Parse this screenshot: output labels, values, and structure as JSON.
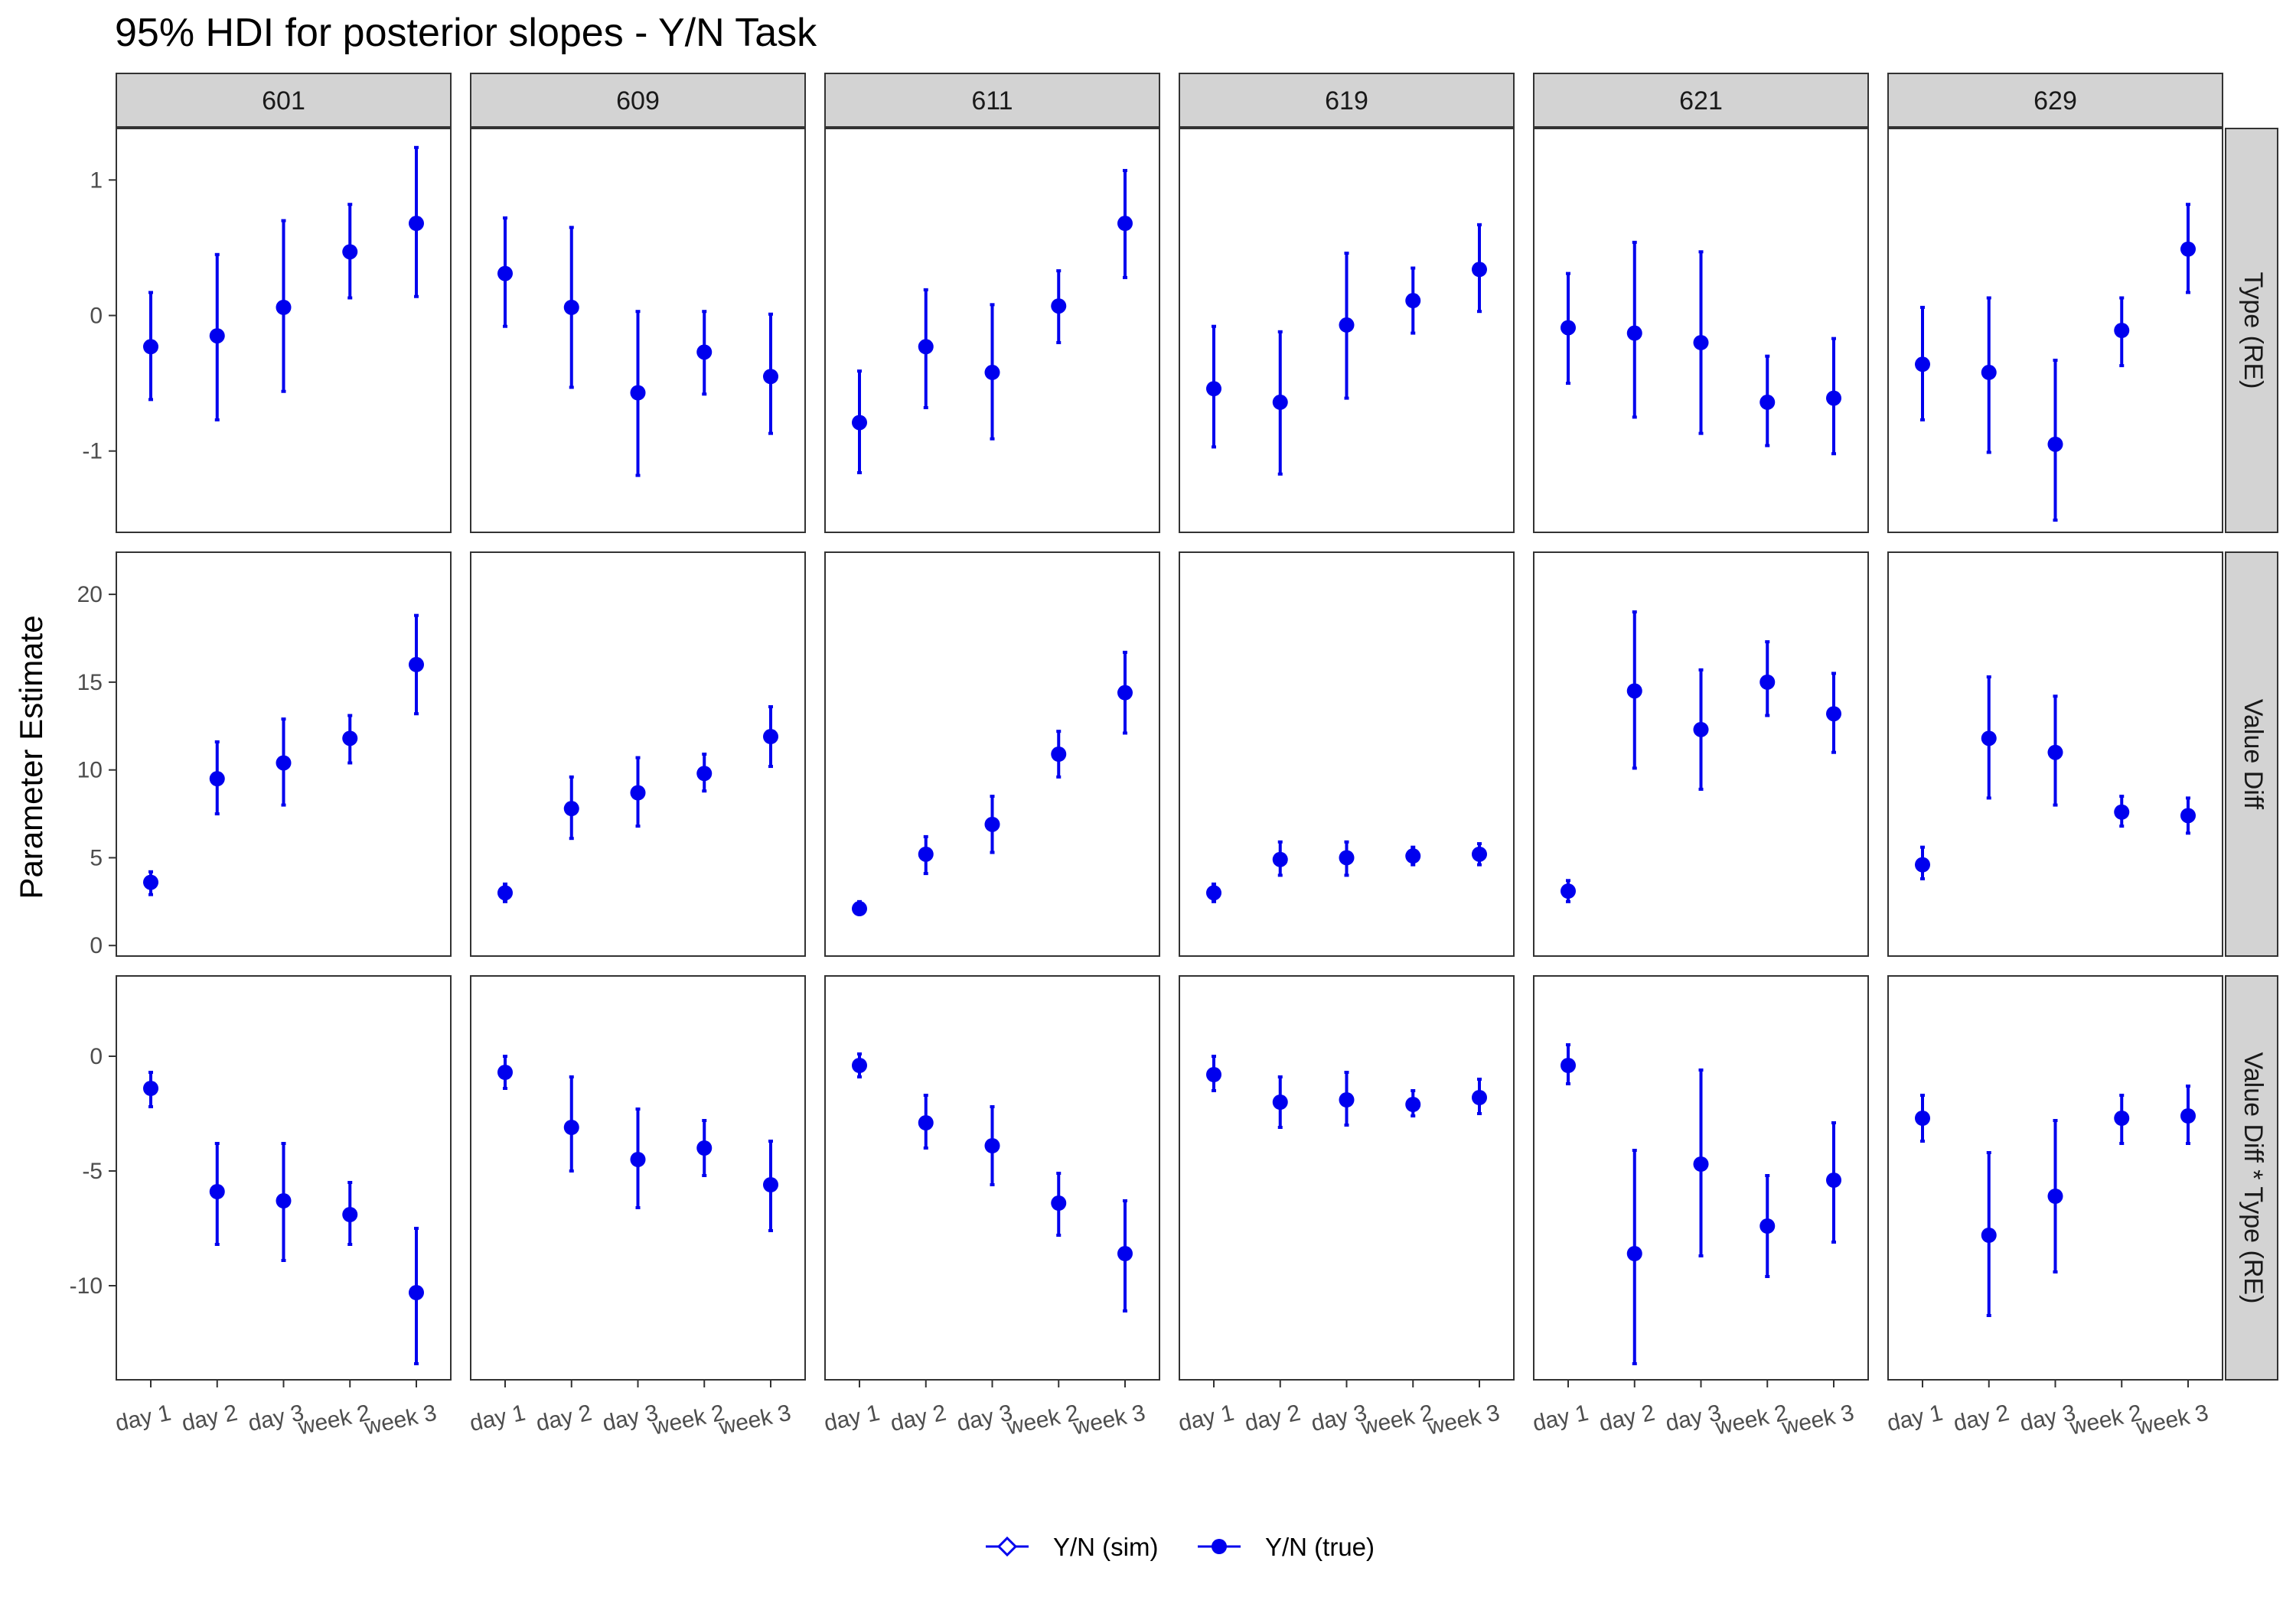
{
  "chart_data": {
    "type": "scatter",
    "title": "95% HDI for posterior slopes - Y/N Task",
    "ylabel": "Parameter Estimate",
    "xlabel": "",
    "columns": [
      "601",
      "609",
      "611",
      "619",
      "621",
      "629"
    ],
    "categories": [
      "day 1",
      "day 2",
      "day 3",
      "week 2",
      "week 3"
    ],
    "legend": {
      "position": "bottom",
      "entries": [
        {
          "label": "Y/N (sim)",
          "marker": "open-diamond"
        },
        {
          "label": "Y/N (true)",
          "marker": "filled-circle"
        }
      ]
    },
    "colors": {
      "points": "#0000ee",
      "strip_fill": "#d3d3d3",
      "panel_border": "#333333",
      "tick_text": "#4d4d4d"
    },
    "grid": false,
    "rows": [
      {
        "label": "Type (RE)",
        "ylim": [
          -1.6,
          1.38
        ],
        "yticks": [
          1,
          0,
          -1
        ],
        "ytick_labels": [
          "1",
          "0",
          "-1"
        ],
        "series": [
          {
            "name": "Y/N (true)",
            "panels": [
              {
                "column": "601",
                "mean": [
                  -0.23,
                  -0.15,
                  0.06,
                  0.47,
                  0.68
                ],
                "lower": [
                  -0.62,
                  -0.77,
                  -0.56,
                  0.13,
                  0.14
                ],
                "upper": [
                  0.17,
                  0.45,
                  0.7,
                  0.82,
                  1.24
                ]
              },
              {
                "column": "609",
                "mean": [
                  0.31,
                  0.06,
                  -0.57,
                  -0.27,
                  -0.45
                ],
                "lower": [
                  -0.08,
                  -0.53,
                  -1.18,
                  -0.58,
                  -0.87
                ],
                "upper": [
                  0.72,
                  0.65,
                  0.03,
                  0.03,
                  0.01
                ]
              },
              {
                "column": "611",
                "mean": [
                  -0.79,
                  -0.23,
                  -0.42,
                  0.07,
                  0.68
                ],
                "lower": [
                  -1.16,
                  -0.68,
                  -0.91,
                  -0.2,
                  0.28
                ],
                "upper": [
                  -0.41,
                  0.19,
                  0.08,
                  0.33,
                  1.07
                ]
              },
              {
                "column": "619",
                "mean": [
                  -0.54,
                  -0.64,
                  -0.07,
                  0.11,
                  0.34
                ],
                "lower": [
                  -0.97,
                  -1.17,
                  -0.61,
                  -0.13,
                  0.03
                ],
                "upper": [
                  -0.08,
                  -0.12,
                  0.46,
                  0.35,
                  0.67
                ]
              },
              {
                "column": "621",
                "mean": [
                  -0.09,
                  -0.13,
                  -0.2,
                  -0.64,
                  -0.61
                ],
                "lower": [
                  -0.5,
                  -0.75,
                  -0.87,
                  -0.96,
                  -1.02
                ],
                "upper": [
                  0.31,
                  0.54,
                  0.47,
                  -0.3,
                  -0.17
                ]
              },
              {
                "column": "629",
                "mean": [
                  -0.36,
                  -0.42,
                  -0.95,
                  -0.11,
                  0.49
                ],
                "lower": [
                  -0.77,
                  -1.01,
                  -1.51,
                  -0.37,
                  0.17
                ],
                "upper": [
                  0.06,
                  0.13,
                  -0.33,
                  0.13,
                  0.82
                ]
              }
            ]
          }
        ]
      },
      {
        "label": "Value Diff",
        "ylim": [
          -0.6,
          22.4
        ],
        "yticks": [
          20,
          15,
          10,
          5,
          0
        ],
        "ytick_labels": [
          "20",
          "15",
          "10",
          "5",
          "0"
        ],
        "series": [
          {
            "name": "Y/N (true)",
            "panels": [
              {
                "column": "601",
                "mean": [
                  3.6,
                  9.5,
                  10.4,
                  11.8,
                  16.0
                ],
                "lower": [
                  2.9,
                  7.5,
                  8.0,
                  10.4,
                  13.2
                ],
                "upper": [
                  4.2,
                  11.6,
                  12.9,
                  13.1,
                  18.8
                ]
              },
              {
                "column": "609",
                "mean": [
                  3.0,
                  7.8,
                  8.7,
                  9.8,
                  11.9
                ],
                "lower": [
                  2.5,
                  6.1,
                  6.8,
                  8.8,
                  10.2
                ],
                "upper": [
                  3.5,
                  9.6,
                  10.7,
                  10.9,
                  13.6
                ]
              },
              {
                "column": "611",
                "mean": [
                  2.1,
                  5.2,
                  6.9,
                  10.9,
                  14.4
                ],
                "lower": [
                  1.8,
                  4.1,
                  5.3,
                  9.6,
                  12.1
                ],
                "upper": [
                  2.5,
                  6.2,
                  8.5,
                  12.2,
                  16.7
                ]
              },
              {
                "column": "619",
                "mean": [
                  3.0,
                  4.9,
                  5.0,
                  5.1,
                  5.2
                ],
                "lower": [
                  2.5,
                  4.0,
                  4.0,
                  4.6,
                  4.6
                ],
                "upper": [
                  3.5,
                  5.9,
                  5.9,
                  5.6,
                  5.8
                ]
              },
              {
                "column": "621",
                "mean": [
                  3.1,
                  14.5,
                  12.3,
                  15.0,
                  13.2
                ],
                "lower": [
                  2.5,
                  10.1,
                  8.9,
                  13.1,
                  11.0
                ],
                "upper": [
                  3.7,
                  19.0,
                  15.7,
                  17.3,
                  15.5
                ]
              },
              {
                "column": "629",
                "mean": [
                  4.6,
                  11.8,
                  11.0,
                  7.6,
                  7.4
                ],
                "lower": [
                  3.8,
                  8.4,
                  8.0,
                  6.8,
                  6.4
                ],
                "upper": [
                  5.6,
                  15.3,
                  14.2,
                  8.5,
                  8.4
                ]
              }
            ]
          }
        ]
      },
      {
        "label": "Value Diff * Type (RE)",
        "ylim": [
          -14.1,
          3.5
        ],
        "yticks": [
          0,
          -5,
          -10
        ],
        "ytick_labels": [
          "0",
          "-5",
          "-10"
        ],
        "series": [
          {
            "name": "Y/N (true)",
            "panels": [
              {
                "column": "601",
                "mean": [
                  -1.4,
                  -5.9,
                  -6.3,
                  -6.9,
                  -10.3
                ],
                "lower": [
                  -2.2,
                  -8.2,
                  -8.9,
                  -8.2,
                  -13.4
                ],
                "upper": [
                  -0.7,
                  -3.8,
                  -3.8,
                  -5.5,
                  -7.5
                ]
              },
              {
                "column": "609",
                "mean": [
                  -0.7,
                  -3.1,
                  -4.5,
                  -4.0,
                  -5.6
                ],
                "lower": [
                  -1.4,
                  -5.0,
                  -6.6,
                  -5.2,
                  -7.6
                ],
                "upper": [
                  0.0,
                  -0.9,
                  -2.3,
                  -2.8,
                  -3.7
                ]
              },
              {
                "column": "611",
                "mean": [
                  -0.4,
                  -2.9,
                  -3.9,
                  -6.4,
                  -8.6
                ],
                "lower": [
                  -0.9,
                  -4.0,
                  -5.6,
                  -7.8,
                  -11.1
                ],
                "upper": [
                  0.1,
                  -1.7,
                  -2.2,
                  -5.1,
                  -6.3
                ]
              },
              {
                "column": "619",
                "mean": [
                  -0.8,
                  -2.0,
                  -1.9,
                  -2.1,
                  -1.8
                ],
                "lower": [
                  -1.5,
                  -3.1,
                  -3.0,
                  -2.6,
                  -2.5
                ],
                "upper": [
                  0.0,
                  -0.9,
                  -0.7,
                  -1.5,
                  -1.0
                ]
              },
              {
                "column": "621",
                "mean": [
                  -0.4,
                  -8.6,
                  -4.7,
                  -7.4,
                  -5.4
                ],
                "lower": [
                  -1.2,
                  -13.4,
                  -8.7,
                  -9.6,
                  -8.1
                ],
                "upper": [
                  0.5,
                  -4.1,
                  -0.6,
                  -5.2,
                  -2.9
                ]
              },
              {
                "column": "629",
                "mean": [
                  -2.7,
                  -7.8,
                  -6.1,
                  -2.7,
                  -2.6
                ],
                "lower": [
                  -3.7,
                  -11.3,
                  -9.4,
                  -3.8,
                  -3.8
                ],
                "upper": [
                  -1.7,
                  -4.2,
                  -2.8,
                  -1.7,
                  -1.3
                ]
              }
            ]
          }
        ]
      }
    ]
  }
}
